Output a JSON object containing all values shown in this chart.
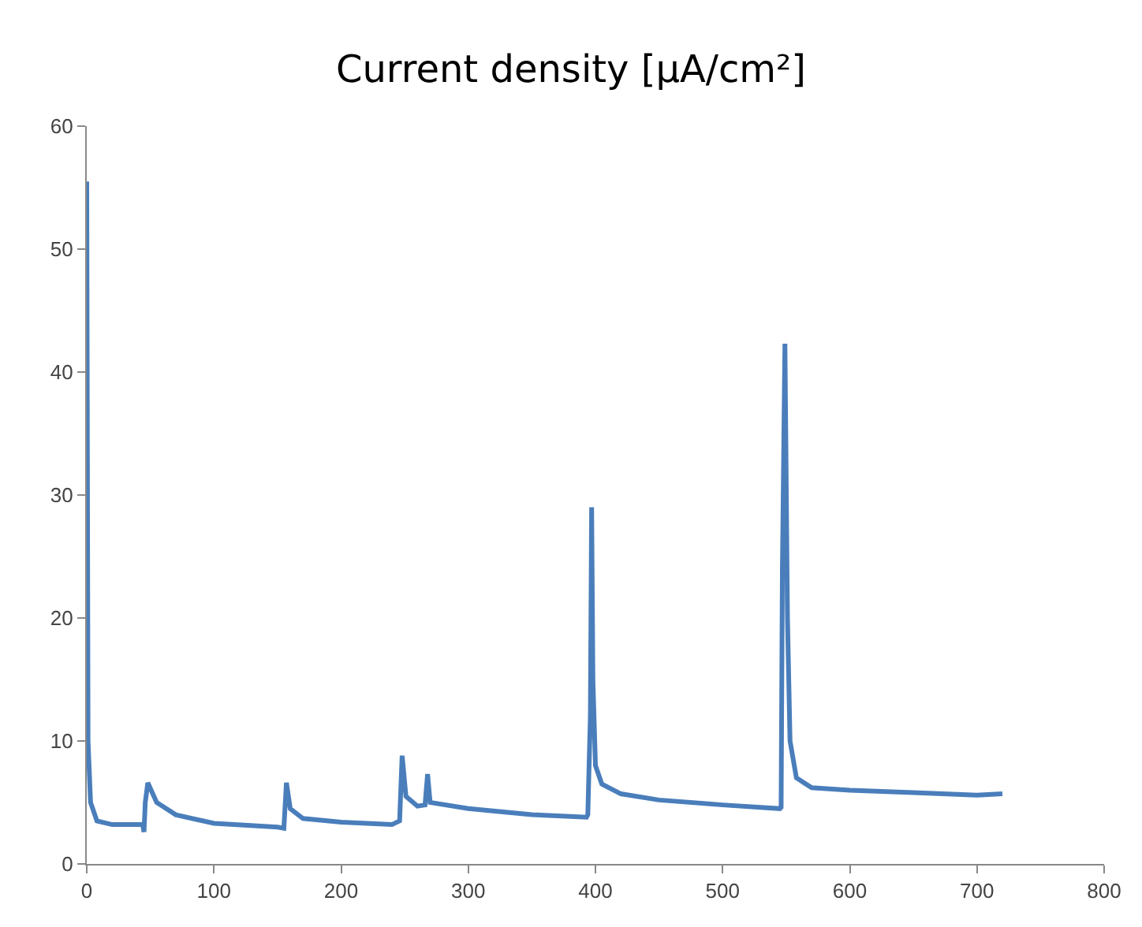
{
  "chart_data": {
    "type": "line",
    "title": "Current density [µA/cm²]",
    "grid": false,
    "marker": "none",
    "line_style": "solid",
    "xlim": [
      0,
      800
    ],
    "xticks": [
      0,
      100,
      200,
      300,
      400,
      500,
      600,
      700,
      800
    ],
    "ylim": [
      0,
      60
    ],
    "yticks": [
      0,
      10,
      20,
      30,
      40,
      50,
      60
    ],
    "series": [
      {
        "color": "#4a7ebb",
        "x": [
          0,
          1,
          3,
          8,
          20,
          44,
          45,
          46,
          48,
          55,
          70,
          100,
          150,
          155,
          157,
          160,
          170,
          200,
          240,
          246,
          248,
          251,
          260,
          266,
          268,
          270,
          300,
          350,
          393,
          394,
          396,
          397,
          398,
          400,
          405,
          420,
          450,
          500,
          545,
          546,
          547,
          549,
          551,
          553,
          558,
          570,
          600,
          650,
          700,
          720
        ],
        "values": [
          55.5,
          10,
          5,
          3.5,
          3.2,
          3.2,
          2.6,
          5,
          6.6,
          5,
          4,
          3.3,
          3,
          2.9,
          6.6,
          4.5,
          3.7,
          3.4,
          3.2,
          3.5,
          8.8,
          5.5,
          4.7,
          4.8,
          7.3,
          5,
          4.5,
          4,
          3.8,
          4,
          12,
          29,
          15,
          8,
          6.5,
          5.7,
          5.2,
          4.8,
          4.5,
          4.6,
          24,
          42.3,
          20,
          10,
          7,
          6.2,
          6,
          5.8,
          5.6,
          5.7
        ]
      }
    ]
  }
}
